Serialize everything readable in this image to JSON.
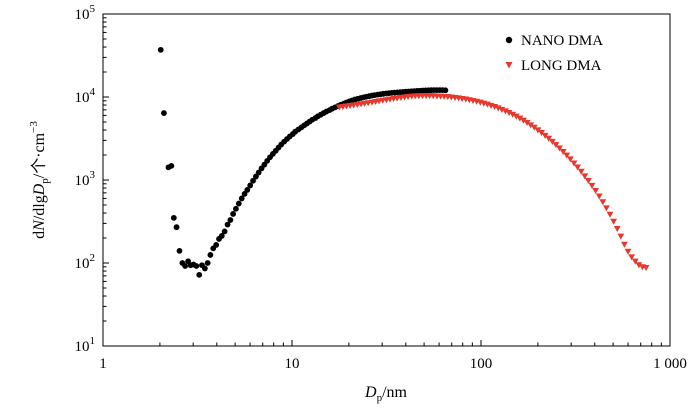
{
  "chart_data": {
    "type": "scatter",
    "x_scale": "log",
    "y_scale": "log",
    "xlim": [
      1,
      1000
    ],
    "ylim": [
      10,
      100000
    ],
    "x_ticks": [
      {
        "value": 1,
        "label": "1"
      },
      {
        "value": 10,
        "label": "10"
      },
      {
        "value": 100,
        "label": "100"
      },
      {
        "value": 1000,
        "label": "1 000"
      }
    ],
    "y_ticks": [
      {
        "value": 10,
        "base": "10",
        "exp": "1"
      },
      {
        "value": 100,
        "base": "10",
        "exp": "2"
      },
      {
        "value": 1000,
        "base": "10",
        "exp": "3"
      },
      {
        "value": 10000,
        "base": "10",
        "exp": "4"
      },
      {
        "value": 100000,
        "base": "10",
        "exp": "5"
      }
    ],
    "xlabel": {
      "main": "D",
      "sub": "p",
      "unit": "/nm"
    },
    "ylabel": {
      "d": "d",
      "N": "N",
      "mid": "/dlg",
      "D": "D",
      "sub": "p",
      "unit": "/个·cm",
      "sup": "−3"
    },
    "legend_position": "top-right",
    "grid": false,
    "series": [
      {
        "name": "NANO DMA",
        "marker": "circle",
        "color": "#000000",
        "points": [
          [
            2.02,
            37000
          ],
          [
            2.1,
            6400
          ],
          [
            2.22,
            1420
          ],
          [
            2.3,
            1480
          ],
          [
            2.37,
            350
          ],
          [
            2.45,
            270
          ],
          [
            2.54,
            140
          ],
          [
            2.63,
            100
          ],
          [
            2.72,
            92
          ],
          [
            2.82,
            105
          ],
          [
            2.91,
            94
          ],
          [
            3.01,
            96
          ],
          [
            3.12,
            92
          ],
          [
            3.23,
            72
          ],
          [
            3.34,
            94
          ],
          [
            3.46,
            86
          ],
          [
            3.58,
            100
          ],
          [
            3.7,
            125
          ],
          [
            3.83,
            150
          ],
          [
            3.97,
            165
          ],
          [
            4.11,
            195
          ],
          [
            4.25,
            212
          ],
          [
            4.4,
            240
          ],
          [
            4.56,
            290
          ],
          [
            4.72,
            330
          ],
          [
            4.88,
            390
          ],
          [
            5.05,
            450
          ],
          [
            5.23,
            520
          ],
          [
            5.42,
            600
          ],
          [
            5.61,
            680
          ],
          [
            5.8,
            760
          ],
          [
            6.01,
            860
          ],
          [
            6.22,
            980
          ],
          [
            6.44,
            1100
          ],
          [
            6.66,
            1230
          ],
          [
            6.9,
            1380
          ],
          [
            7.14,
            1530
          ],
          [
            7.39,
            1700
          ],
          [
            7.65,
            1880
          ],
          [
            7.92,
            2060
          ],
          [
            8.2,
            2250
          ],
          [
            8.49,
            2460
          ],
          [
            8.78,
            2680
          ],
          [
            9.09,
            2900
          ],
          [
            9.41,
            3120
          ],
          [
            9.74,
            3350
          ],
          [
            10.1,
            3580
          ],
          [
            10.4,
            3820
          ],
          [
            10.8,
            4060
          ],
          [
            11.2,
            4300
          ],
          [
            11.6,
            4550
          ],
          [
            12.0,
            4800
          ],
          [
            12.4,
            5060
          ],
          [
            12.8,
            5320
          ],
          [
            13.3,
            5580
          ],
          [
            13.7,
            5850
          ],
          [
            14.2,
            6120
          ],
          [
            14.7,
            6400
          ],
          [
            15.2,
            6680
          ],
          [
            15.8,
            6950
          ],
          [
            16.3,
            7230
          ],
          [
            16.9,
            7500
          ],
          [
            17.5,
            7780
          ],
          [
            18.1,
            8050
          ],
          [
            18.8,
            8320
          ],
          [
            19.4,
            8580
          ],
          [
            20.1,
            8840
          ],
          [
            20.8,
            9080
          ],
          [
            21.5,
            9310
          ],
          [
            22.3,
            9520
          ],
          [
            23.1,
            9720
          ],
          [
            23.9,
            9900
          ],
          [
            24.7,
            10080
          ],
          [
            25.6,
            10240
          ],
          [
            26.5,
            10400
          ],
          [
            27.4,
            10540
          ],
          [
            28.4,
            10680
          ],
          [
            29.4,
            10800
          ],
          [
            30.4,
            10920
          ],
          [
            31.5,
            11030
          ],
          [
            32.6,
            11120
          ],
          [
            33.7,
            11210
          ],
          [
            34.9,
            11290
          ],
          [
            36.1,
            11370
          ],
          [
            37.4,
            11440
          ],
          [
            38.7,
            11510
          ],
          [
            40.0,
            11580
          ],
          [
            41.4,
            11650
          ],
          [
            42.9,
            11710
          ],
          [
            44.4,
            11780
          ],
          [
            45.9,
            11840
          ],
          [
            47.5,
            11900
          ],
          [
            49.2,
            11950
          ],
          [
            50.9,
            12000
          ],
          [
            52.7,
            12040
          ],
          [
            54.6,
            12080
          ],
          [
            56.5,
            12100
          ],
          [
            58.4,
            12110
          ],
          [
            60.5,
            12110
          ],
          [
            62.6,
            12100
          ],
          [
            64.8,
            12050
          ]
        ]
      },
      {
        "name": "LONG DMA",
        "marker": "triangle-down",
        "color": "#e8372c",
        "points": [
          [
            17.8,
            7550
          ],
          [
            18.6,
            7650
          ],
          [
            19.4,
            7760
          ],
          [
            20.3,
            7870
          ],
          [
            21.2,
            7990
          ],
          [
            22.2,
            8110
          ],
          [
            23.2,
            8240
          ],
          [
            24.2,
            8370
          ],
          [
            25.3,
            8510
          ],
          [
            26.5,
            8650
          ],
          [
            27.7,
            8800
          ],
          [
            28.9,
            8950
          ],
          [
            30.2,
            9100
          ],
          [
            31.6,
            9250
          ],
          [
            33.0,
            9400
          ],
          [
            34.5,
            9550
          ],
          [
            36.0,
            9700
          ],
          [
            37.7,
            9850
          ],
          [
            39.4,
            9980
          ],
          [
            41.1,
            10100
          ],
          [
            43.0,
            10200
          ],
          [
            44.9,
            10280
          ],
          [
            46.9,
            10340
          ],
          [
            49.0,
            10370
          ],
          [
            51.2,
            10370
          ],
          [
            53.5,
            10350
          ],
          [
            55.9,
            10320
          ],
          [
            58.5,
            10270
          ],
          [
            61.1,
            10210
          ],
          [
            63.8,
            10140
          ],
          [
            66.7,
            10060
          ],
          [
            69.7,
            9960
          ],
          [
            72.8,
            9850
          ],
          [
            76.1,
            9720
          ],
          [
            79.5,
            9580
          ],
          [
            83.1,
            9420
          ],
          [
            86.8,
            9250
          ],
          [
            90.7,
            9060
          ],
          [
            94.8,
            8860
          ],
          [
            99.1,
            8640
          ],
          [
            103.5,
            8410
          ],
          [
            108.2,
            8170
          ],
          [
            113.0,
            7910
          ],
          [
            118.1,
            7650
          ],
          [
            123.4,
            7370
          ],
          [
            128.9,
            7080
          ],
          [
            134.7,
            6780
          ],
          [
            140.8,
            6480
          ],
          [
            147.1,
            6170
          ],
          [
            153.7,
            5860
          ],
          [
            160.6,
            5550
          ],
          [
            167.8,
            5230
          ],
          [
            175.4,
            4920
          ],
          [
            183.2,
            4610
          ],
          [
            191.5,
            4310
          ],
          [
            200.1,
            4010
          ],
          [
            209.1,
            3720
          ],
          [
            218.4,
            3440
          ],
          [
            228.2,
            3170
          ],
          [
            238.5,
            2910
          ],
          [
            249.2,
            2660
          ],
          [
            260.4,
            2420
          ],
          [
            272.1,
            2200
          ],
          [
            284.3,
            1990
          ],
          [
            297.1,
            1790
          ],
          [
            310.4,
            1600
          ],
          [
            324.3,
            1430
          ],
          [
            338.9,
            1270
          ],
          [
            354.1,
            1120
          ],
          [
            370.0,
            985
          ],
          [
            386.6,
            860
          ],
          [
            404.0,
            745
          ],
          [
            422.1,
            640
          ],
          [
            441.1,
            545
          ],
          [
            460.9,
            460
          ],
          [
            481.6,
            385
          ],
          [
            503.2,
            318
          ],
          [
            525.8,
            260
          ],
          [
            549.4,
            210
          ],
          [
            574.1,
            168
          ],
          [
            599.9,
            138
          ],
          [
            626.8,
            118
          ],
          [
            655.0,
            105
          ],
          [
            684.4,
            95
          ],
          [
            715.1,
            90
          ],
          [
            747.2,
            88
          ]
        ]
      }
    ]
  }
}
